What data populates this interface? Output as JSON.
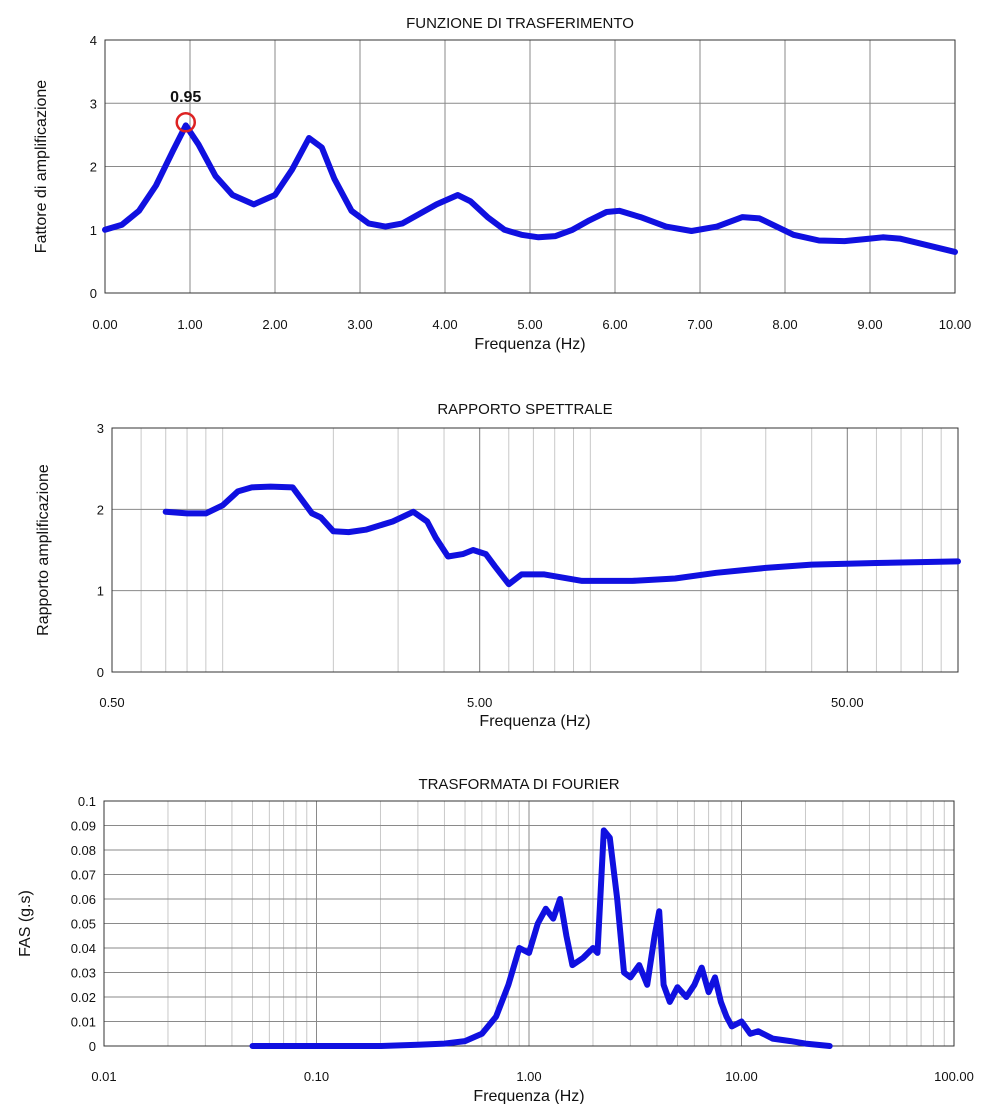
{
  "chart_data": [
    {
      "id": "c1",
      "type": "line",
      "title": "FUNZIONE DI TRASFERIMENTO",
      "xlabel": "Frequenza (Hz)",
      "ylabel": "Fattore di amplificazione",
      "xscale": "linear",
      "xlim": [
        0,
        10
      ],
      "ylim": [
        0,
        4
      ],
      "xticks": [
        0,
        1,
        2,
        3,
        4,
        5,
        6,
        7,
        8,
        9,
        10
      ],
      "xtick_labels": [
        "0.00",
        "1.00",
        "2.00",
        "3.00",
        "4.00",
        "5.00",
        "6.00",
        "7.00",
        "8.00",
        "9.00",
        "10.00"
      ],
      "yticks": [
        0,
        1,
        2,
        3,
        4
      ],
      "ytick_labels": [
        "0",
        "1",
        "2",
        "3",
        "4"
      ],
      "grid": true,
      "annotation": {
        "text": "0.95",
        "x": 0.95,
        "y": 2.7,
        "marker_color": "#dd2222"
      },
      "series": [
        {
          "color": "#1010e0",
          "x": [
            0,
            0.2,
            0.4,
            0.6,
            0.8,
            0.95,
            1.1,
            1.3,
            1.5,
            1.75,
            2.0,
            2.2,
            2.4,
            2.55,
            2.7,
            2.9,
            3.1,
            3.3,
            3.5,
            3.7,
            3.9,
            4.15,
            4.3,
            4.5,
            4.7,
            4.9,
            5.1,
            5.3,
            5.5,
            5.7,
            5.9,
            6.05,
            6.3,
            6.6,
            6.9,
            7.2,
            7.5,
            7.7,
            7.9,
            8.1,
            8.4,
            8.7,
            9.0,
            9.15,
            9.35,
            9.6,
            10.0
          ],
          "y": [
            1.0,
            1.08,
            1.3,
            1.7,
            2.25,
            2.65,
            2.35,
            1.85,
            1.55,
            1.4,
            1.55,
            1.95,
            2.45,
            2.3,
            1.8,
            1.3,
            1.1,
            1.05,
            1.1,
            1.25,
            1.4,
            1.55,
            1.45,
            1.2,
            1.0,
            0.92,
            0.88,
            0.9,
            1.0,
            1.15,
            1.28,
            1.3,
            1.2,
            1.05,
            0.98,
            1.05,
            1.2,
            1.18,
            1.05,
            0.92,
            0.83,
            0.82,
            0.86,
            0.88,
            0.86,
            0.78,
            0.65
          ]
        }
      ]
    },
    {
      "id": "c2",
      "type": "line",
      "title": "RAPPORTO SPETTRALE",
      "xlabel": "Frequenza (Hz)",
      "ylabel": "Rapporto amplificazione",
      "xscale": "log",
      "xlim": [
        0.5,
        100
      ],
      "ylim": [
        0,
        3
      ],
      "xticks": [
        0.5,
        5,
        50
      ],
      "xtick_labels": [
        "0.50",
        "5.00",
        "50.00"
      ],
      "yticks": [
        0,
        1,
        2,
        3
      ],
      "ytick_labels": [
        "0",
        "1",
        "2",
        "3"
      ],
      "grid": true,
      "series": [
        {
          "color": "#1010e0",
          "x": [
            0.7,
            0.8,
            0.9,
            1.0,
            1.1,
            1.2,
            1.35,
            1.55,
            1.75,
            1.85,
            2.0,
            2.2,
            2.45,
            2.9,
            3.3,
            3.6,
            3.8,
            4.1,
            4.5,
            4.8,
            5.2,
            5.5,
            6.0,
            6.5,
            7.5,
            9.5,
            13,
            17,
            22,
            30,
            40,
            60,
            100
          ],
          "y": [
            1.97,
            1.95,
            1.95,
            2.05,
            2.22,
            2.27,
            2.28,
            2.27,
            1.95,
            1.9,
            1.73,
            1.72,
            1.75,
            1.85,
            1.97,
            1.85,
            1.65,
            1.42,
            1.45,
            1.5,
            1.45,
            1.3,
            1.08,
            1.2,
            1.2,
            1.12,
            1.12,
            1.15,
            1.22,
            1.28,
            1.32,
            1.34,
            1.36
          ]
        }
      ]
    },
    {
      "id": "c3",
      "type": "line",
      "title": "TRASFORMATA DI FOURIER",
      "xlabel": "Frequenza (Hz)",
      "ylabel": "FAS (g.s)",
      "xscale": "log",
      "xlim": [
        0.01,
        100
      ],
      "ylim": [
        0,
        0.1
      ],
      "xticks": [
        0.01,
        0.1,
        1,
        10,
        100
      ],
      "xtick_labels": [
        "0.01",
        "0.10",
        "1.00",
        "10.00",
        "100.00"
      ],
      "yticks": [
        0,
        0.01,
        0.02,
        0.03,
        0.04,
        0.05,
        0.06,
        0.07,
        0.08,
        0.09,
        0.1
      ],
      "ytick_labels": [
        "0",
        "0.01",
        "0.02",
        "0.03",
        "0.04",
        "0.05",
        "0.06",
        "0.07",
        "0.08",
        "0.09",
        "0.1"
      ],
      "grid": true,
      "series": [
        {
          "color": "#1010e0",
          "x": [
            0.05,
            0.1,
            0.2,
            0.3,
            0.4,
            0.5,
            0.6,
            0.7,
            0.8,
            0.9,
            1.0,
            1.1,
            1.2,
            1.3,
            1.4,
            1.5,
            1.6,
            1.8,
            2.0,
            2.1,
            2.25,
            2.4,
            2.6,
            2.8,
            3.0,
            3.3,
            3.6,
            3.9,
            4.1,
            4.3,
            4.6,
            5.0,
            5.5,
            6.0,
            6.5,
            7.0,
            7.5,
            8.0,
            8.5,
            9.0,
            10,
            11,
            12,
            14,
            17,
            20,
            26
          ],
          "y": [
            0,
            0,
            0,
            0.0005,
            0.001,
            0.002,
            0.005,
            0.012,
            0.025,
            0.04,
            0.038,
            0.05,
            0.056,
            0.052,
            0.06,
            0.045,
            0.033,
            0.036,
            0.04,
            0.038,
            0.088,
            0.085,
            0.06,
            0.03,
            0.028,
            0.033,
            0.025,
            0.045,
            0.055,
            0.025,
            0.018,
            0.024,
            0.02,
            0.025,
            0.032,
            0.022,
            0.028,
            0.018,
            0.012,
            0.008,
            0.01,
            0.005,
            0.006,
            0.003,
            0.002,
            0.001,
            0
          ]
        }
      ]
    }
  ]
}
